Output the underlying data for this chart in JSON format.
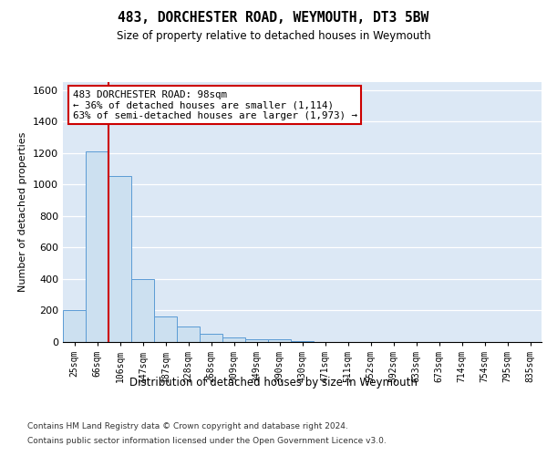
{
  "title": "483, DORCHESTER ROAD, WEYMOUTH, DT3 5BW",
  "subtitle": "Size of property relative to detached houses in Weymouth",
  "xlabel": "Distribution of detached houses by size in Weymouth",
  "ylabel": "Number of detached properties",
  "bins": [
    "25sqm",
    "66sqm",
    "106sqm",
    "147sqm",
    "187sqm",
    "228sqm",
    "268sqm",
    "309sqm",
    "349sqm",
    "390sqm",
    "430sqm",
    "471sqm",
    "511sqm",
    "552sqm",
    "592sqm",
    "633sqm",
    "673sqm",
    "714sqm",
    "754sqm",
    "795sqm",
    "835sqm"
  ],
  "values": [
    200,
    1210,
    1055,
    400,
    160,
    100,
    50,
    30,
    20,
    15,
    5,
    0,
    0,
    0,
    0,
    0,
    0,
    0,
    0,
    0,
    0
  ],
  "bar_color": "#cce0f0",
  "bar_edge_color": "#5b9bd5",
  "property_label": "483 DORCHESTER ROAD: 98sqm",
  "annotation_line1": "← 36% of detached houses are smaller (1,114)",
  "annotation_line2": "63% of semi-detached houses are larger (1,973) →",
  "vline_color": "#cc0000",
  "annotation_box_color": "#ffffff",
  "annotation_box_edge": "#cc0000",
  "ylim": [
    0,
    1650
  ],
  "yticks": [
    0,
    200,
    400,
    600,
    800,
    1000,
    1200,
    1400,
    1600
  ],
  "bg_color": "#dce8f5",
  "footer_line1": "Contains HM Land Registry data © Crown copyright and database right 2024.",
  "footer_line2": "Contains public sector information licensed under the Open Government Licence v3.0."
}
